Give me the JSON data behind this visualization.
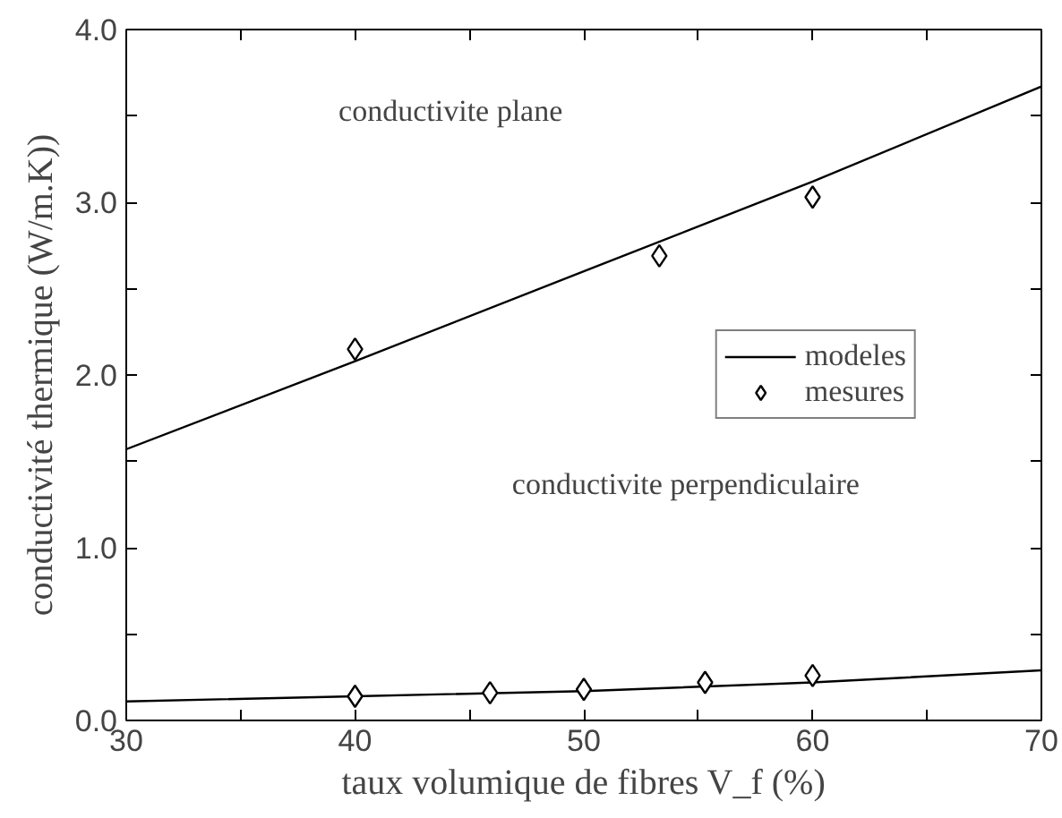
{
  "chart_data": {
    "type": "line",
    "xlabel": "taux volumique de fibres V_f (%)",
    "ylabel": "conductivité thermique (W/m.K))",
    "xlim": [
      30,
      70
    ],
    "ylim": [
      0,
      4.0
    ],
    "xticks": [
      30,
      {
        "value": 35,
        "label": null
      },
      40,
      {
        "value": 45,
        "label": null
      },
      50,
      {
        "value": 55,
        "label": null
      },
      60,
      {
        "value": 65,
        "label": null
      },
      70
    ],
    "yticks": [
      {
        "value": 0,
        "label": "0.0"
      },
      {
        "value": 0.5,
        "label": null
      },
      {
        "value": 1,
        "label": "1.0"
      },
      {
        "value": 1.5,
        "label": null
      },
      {
        "value": 2,
        "label": "2.0"
      },
      {
        "value": 2.5,
        "label": null
      },
      {
        "value": 3,
        "label": "3.0"
      },
      {
        "value": 3.5,
        "label": null
      },
      {
        "value": 4,
        "label": "4.0"
      }
    ],
    "grid": false,
    "legend": "right",
    "series": [
      {
        "name": "modeles",
        "color": "#000000",
        "x": [
          30,
          40,
          50,
          60,
          70
        ],
        "values": [
          1.57,
          2.08,
          2.6,
          3.12,
          3.67
        ]
      },
      {
        "name": "mesures",
        "type": "scatter",
        "marker": "diamond",
        "color": "#000000",
        "x": [
          40,
          53.3,
          60
        ],
        "values": [
          2.15,
          2.69,
          3.03
        ]
      },
      {
        "color": "#000000",
        "x": [
          30,
          40,
          50,
          60,
          70
        ],
        "values": [
          0.11,
          0.14,
          0.17,
          0.22,
          0.29
        ]
      },
      {
        "type": "scatter",
        "marker": "diamond",
        "color": "#000000",
        "x": [
          40,
          45.9,
          50,
          55.3,
          60
        ],
        "values": [
          0.14,
          0.16,
          0.18,
          0.22,
          0.26
        ]
      }
    ],
    "annotations": [
      "conductivite plane",
      "conductivite perpendiculaire"
    ]
  }
}
